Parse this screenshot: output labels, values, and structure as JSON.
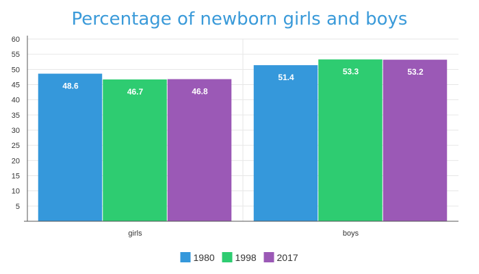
{
  "chart_data": {
    "type": "bar",
    "title": "Percentage of newborn girls and boys",
    "categories": [
      "girls",
      "boys"
    ],
    "series": [
      {
        "name": "1980",
        "values": [
          48.6,
          51.4
        ],
        "color": "#3598db"
      },
      {
        "name": "1998",
        "values": [
          46.7,
          53.3
        ],
        "color": "#2ecc71"
      },
      {
        "name": "2017",
        "values": [
          46.8,
          53.2
        ],
        "color": "#9b59b6"
      }
    ],
    "ylim": [
      0,
      60
    ],
    "yticks": [
      5,
      10,
      15,
      20,
      25,
      30,
      35,
      40,
      45,
      50,
      55,
      60
    ],
    "xlabel": "",
    "ylabel": "",
    "grid": true,
    "legend": "bottom-center",
    "data_labels": true
  }
}
